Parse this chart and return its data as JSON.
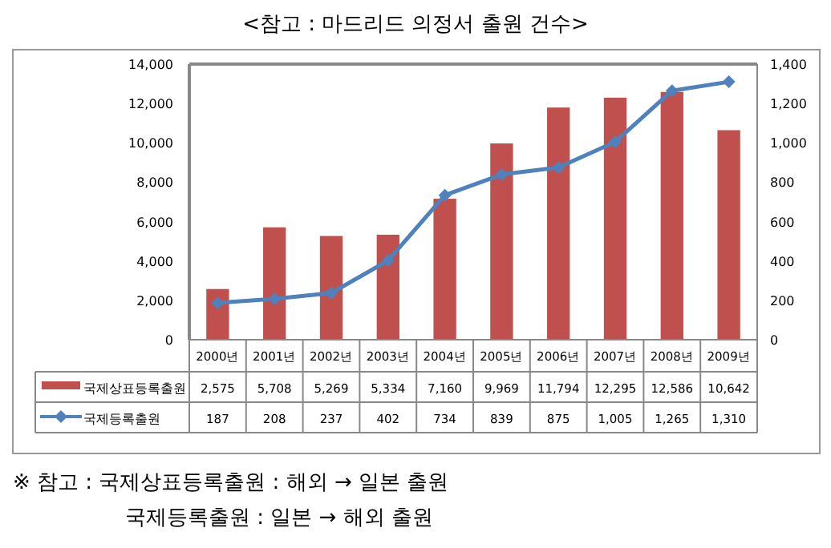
{
  "chart_data": {
    "type": "bar",
    "title": "<참고 : 마드리드 의정서 출원 건수>",
    "categories": [
      "2000년",
      "2001년",
      "2002년",
      "2003년",
      "2004년",
      "2005년",
      "2006년",
      "2007년",
      "2008년",
      "2009년"
    ],
    "series": [
      {
        "name": "국제상표등록출원",
        "color": "#c0504d",
        "values": [
          2575,
          5708,
          5269,
          5334,
          7160,
          9969,
          11794,
          12295,
          12586,
          10642
        ],
        "value_labels": [
          "2,575",
          "5,708",
          "5,269",
          "5,334",
          "7,160",
          "9,969",
          "11,794",
          "12,295",
          "12,586",
          "10,642"
        ]
      },
      {
        "name": "국제등록출원",
        "type": "line",
        "axis": "y2",
        "color": "#4f81bd",
        "marker": "diamond",
        "values": [
          187,
          208,
          237,
          402,
          734,
          839,
          875,
          1005,
          1265,
          1310
        ],
        "value_labels": [
          "187",
          "208",
          "237",
          "402",
          "734",
          "839",
          "875",
          "1,005",
          "1,265",
          "1,310"
        ]
      }
    ],
    "ylim": [
      0,
      14000
    ],
    "yticks": [
      {
        "value": 0,
        "label": "0"
      },
      {
        "value": 2000,
        "label": "2,000"
      },
      {
        "value": 4000,
        "label": "4,000"
      },
      {
        "value": 6000,
        "label": "6,000"
      },
      {
        "value": 8000,
        "label": "8,000"
      },
      {
        "value": 10000,
        "label": "10,000"
      },
      {
        "value": 12000,
        "label": "12,000"
      },
      {
        "value": 14000,
        "label": "14,000"
      }
    ],
    "y2lim": [
      0,
      1400
    ],
    "y2ticks": [
      {
        "value": 0,
        "label": "0"
      },
      {
        "value": 200,
        "label": "200"
      },
      {
        "value": 400,
        "label": "400"
      },
      {
        "value": 600,
        "label": "600"
      },
      {
        "value": 800,
        "label": "800"
      },
      {
        "value": 1000,
        "label": "1,000"
      },
      {
        "value": 1200,
        "label": "1,200"
      },
      {
        "value": 1400,
        "label": "1,400"
      }
    ],
    "grid": false,
    "legend": "left",
    "annotations": [
      "※ 참고 : 국제상표등록출원 : 해외 → 일본 출원",
      "국제등록출원 : 일본 → 해외 출원"
    ]
  }
}
